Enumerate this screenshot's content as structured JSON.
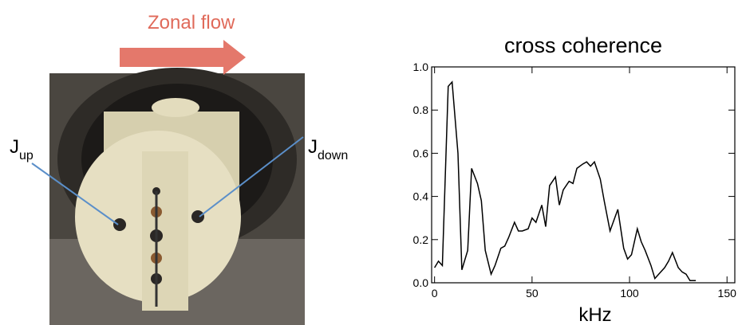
{
  "photo": {
    "title": "Zonal flow",
    "labels": [
      {
        "main": "J",
        "sub": "up"
      },
      {
        "main": "J",
        "sub": "down"
      }
    ]
  },
  "chart_data": {
    "type": "line",
    "title": "cross coherence",
    "x_label": "kHz",
    "xlim": [
      -1.5,
      154
    ],
    "ylim": [
      0,
      1.0
    ],
    "xticks": [
      0,
      50,
      100,
      150
    ],
    "yticks": [
      {
        "value": 0,
        "label": "0.0"
      },
      0.2,
      0.4,
      0.6,
      0.8,
      {
        "value": 1.0,
        "label": "1.0"
      }
    ],
    "grid": false,
    "series": [
      {
        "color": "#000000",
        "x": [
          0,
          2,
          4,
          7,
          9,
          12,
          14,
          17,
          19,
          22,
          24,
          26,
          29,
          31,
          34,
          36,
          38,
          41,
          43,
          45,
          48,
          50,
          52,
          55,
          57,
          59,
          62,
          64,
          66,
          69,
          71,
          73,
          76,
          78,
          80,
          82,
          85,
          87,
          90,
          92,
          94,
          97,
          99,
          101,
          104,
          106,
          108,
          111,
          113,
          115,
          118,
          120,
          122,
          125,
          127,
          129,
          131,
          134
        ],
        "values": [
          0.07,
          0.1,
          0.08,
          0.91,
          0.93,
          0.6,
          0.06,
          0.15,
          0.53,
          0.46,
          0.38,
          0.15,
          0.04,
          0.08,
          0.16,
          0.17,
          0.21,
          0.28,
          0.24,
          0.24,
          0.25,
          0.3,
          0.28,
          0.36,
          0.26,
          0.45,
          0.49,
          0.36,
          0.43,
          0.47,
          0.46,
          0.53,
          0.55,
          0.56,
          0.54,
          0.56,
          0.48,
          0.38,
          0.24,
          0.29,
          0.34,
          0.16,
          0.11,
          0.13,
          0.25,
          0.19,
          0.15,
          0.08,
          0.02,
          0.04,
          0.07,
          0.1,
          0.14,
          0.07,
          0.05,
          0.04,
          0.01,
          0.01
        ]
      }
    ]
  }
}
